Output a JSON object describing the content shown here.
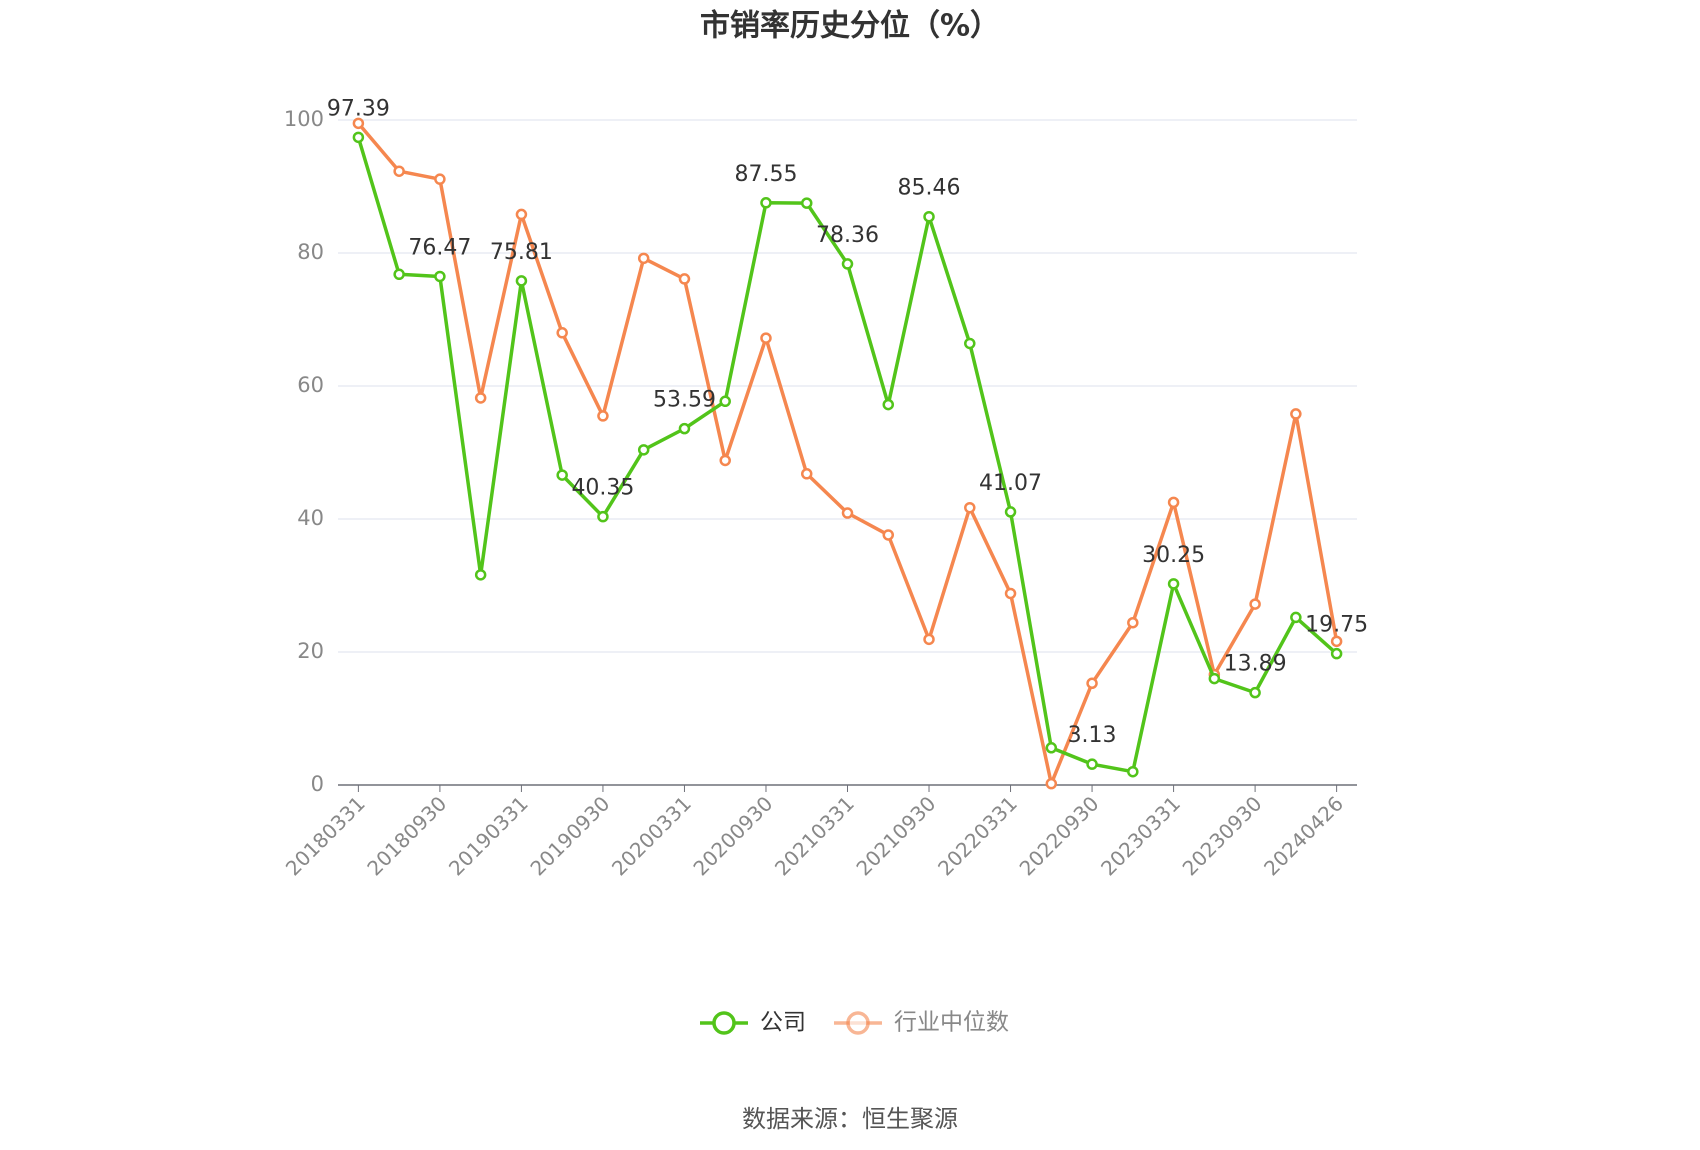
{
  "chart_data": {
    "type": "line",
    "title": "市销率历史分位（%）",
    "categories": [
      "20180331",
      null,
      "20180930",
      null,
      "20190331",
      null,
      "20190930",
      null,
      "20200331",
      null,
      "20200930",
      null,
      "20210331",
      null,
      "20210930",
      null,
      "20220331",
      null,
      "20220930",
      null,
      "20230331",
      null,
      "20230930",
      null,
      "20240426"
    ],
    "series": [
      {
        "name": "公司",
        "color": "#52c41a",
        "values": [
          97.39,
          76.8,
          76.47,
          31.6,
          75.81,
          46.6,
          40.35,
          50.4,
          53.59,
          57.7,
          87.55,
          87.5,
          78.36,
          57.2,
          85.46,
          66.4,
          41.07,
          5.6,
          3.13,
          2.0,
          30.25,
          16.0,
          13.89,
          25.2,
          19.75
        ],
        "value_labels": [
          "97.39",
          null,
          "76.47",
          null,
          "75.81",
          null,
          "40.35",
          null,
          "53.59",
          null,
          "87.55",
          null,
          "78.36",
          null,
          "85.46",
          null,
          "41.07",
          null,
          "3.13",
          null,
          "30.25",
          null,
          "13.89",
          null,
          "19.75"
        ]
      },
      {
        "name": "行业中位数",
        "color": "#f5874f",
        "values": [
          99.5,
          92.3,
          91.1,
          58.2,
          85.8,
          68.0,
          55.5,
          79.2,
          76.1,
          48.8,
          67.2,
          46.8,
          40.9,
          37.6,
          21.9,
          41.7,
          28.8,
          0.2,
          15.3,
          24.4,
          42.5,
          16.6,
          27.2,
          55.8,
          21.6
        ]
      }
    ],
    "ylim": [
      0,
      100
    ],
    "yticks": [
      0,
      20,
      40,
      60,
      80,
      100
    ],
    "grid": true,
    "source": "数据来源：恒生聚源"
  }
}
